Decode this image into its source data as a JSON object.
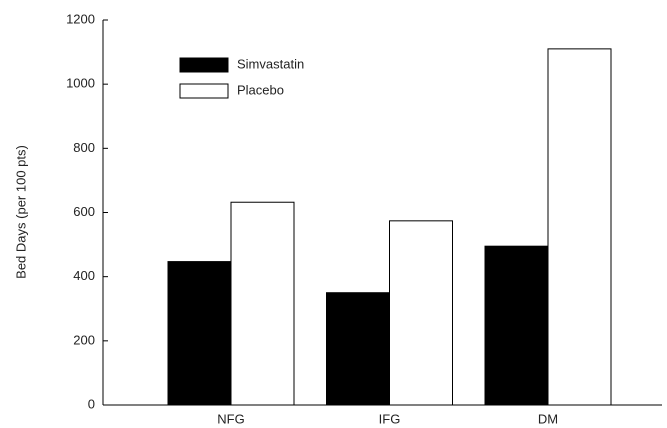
{
  "chart_data": {
    "type": "bar",
    "y_label": "Bed Days (per 100 pts)",
    "categories": [
      "NFG",
      "IFG",
      "DM"
    ],
    "series": [
      {
        "name": "Simvastatin",
        "color": "#000000",
        "values": [
          447,
          350,
          495
        ]
      },
      {
        "name": "Placebo",
        "color": "#ffffff",
        "values": [
          632,
          574,
          1110
        ]
      }
    ],
    "ylim": [
      0,
      1200
    ],
    "yticks": [
      0,
      200,
      400,
      600,
      800,
      1000,
      1200
    ],
    "legend": "upper left"
  }
}
